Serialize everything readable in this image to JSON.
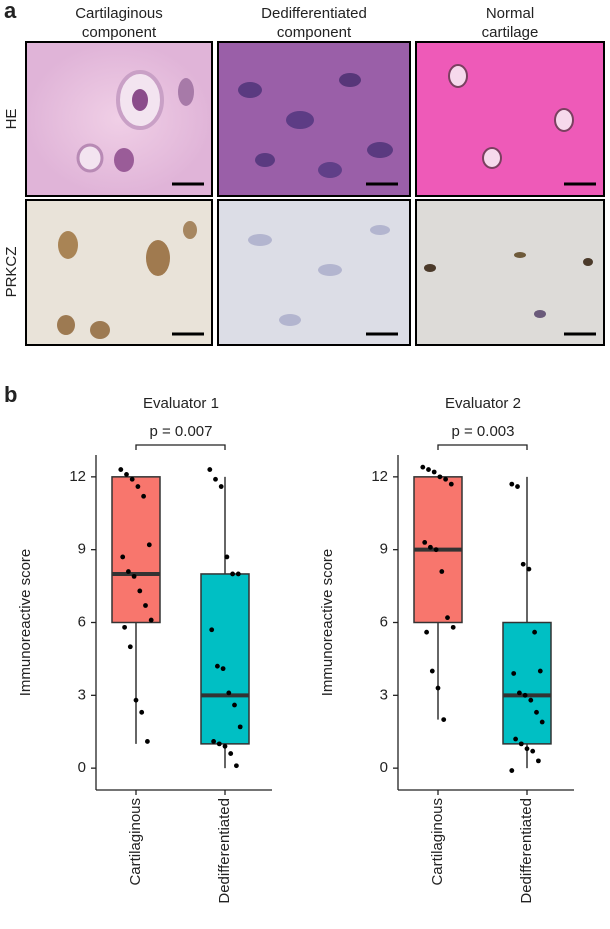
{
  "panel_a": {
    "label": "a",
    "columns": [
      [
        "Cartilaginous",
        "component"
      ],
      [
        "Dedifferentiated",
        "component"
      ],
      [
        "Normal",
        "cartilage"
      ]
    ],
    "rows": [
      "HE",
      "PRKCZ"
    ]
  },
  "panel_b_label": "b",
  "chart_data": [
    {
      "type": "box",
      "title": "Evaluator 1",
      "annotation": "p = 0.007",
      "y_label": "Immunoreactive score",
      "categories": [
        "Cartilaginous",
        "Dedifferentiated"
      ],
      "ylim": [
        -0.9,
        12.9
      ],
      "yticks": [
        0,
        3,
        6,
        9,
        12
      ],
      "boxes": [
        {
          "color": "#f8766d",
          "min": 1,
          "q1": 6,
          "median": 8,
          "q3": 12,
          "max": 12,
          "points": [
            12.3,
            12.1,
            11.9,
            11.6,
            11.2,
            9.2,
            8.7,
            8.1,
            7.9,
            7.3,
            6.7,
            6.1,
            5.8,
            5.0,
            2.8,
            2.3,
            1.1
          ]
        },
        {
          "color": "#00bfc4",
          "min": 0,
          "q1": 1,
          "median": 3,
          "q3": 8,
          "max": 12,
          "points": [
            12.3,
            11.9,
            11.6,
            8.7,
            8.0,
            8.0,
            5.7,
            4.2,
            4.1,
            3.1,
            2.6,
            1.7,
            1.1,
            1.0,
            0.9,
            0.6,
            0.1
          ]
        }
      ]
    },
    {
      "type": "box",
      "title": "Evaluator 2",
      "annotation": "p = 0.003",
      "y_label": "Immunoreactive score",
      "categories": [
        "Cartilaginous",
        "Dedifferentiated"
      ],
      "ylim": [
        -0.9,
        12.9
      ],
      "yticks": [
        0,
        3,
        6,
        9,
        12
      ],
      "boxes": [
        {
          "color": "#f8766d",
          "min": 2,
          "q1": 6,
          "median": 9,
          "q3": 12,
          "max": 12,
          "points": [
            12.4,
            12.3,
            12.2,
            12.0,
            11.9,
            11.7,
            9.3,
            9.1,
            9.0,
            8.1,
            6.2,
            5.8,
            5.6,
            4.0,
            3.3,
            2.0
          ]
        },
        {
          "color": "#00bfc4",
          "min": 0,
          "q1": 1,
          "median": 3,
          "q3": 6,
          "max": 12,
          "points": [
            11.7,
            11.6,
            8.4,
            8.2,
            5.6,
            4.0,
            3.9,
            3.1,
            3.0,
            2.8,
            2.3,
            1.9,
            1.2,
            1.0,
            0.8,
            0.7,
            0.3,
            -0.1
          ]
        }
      ]
    }
  ]
}
